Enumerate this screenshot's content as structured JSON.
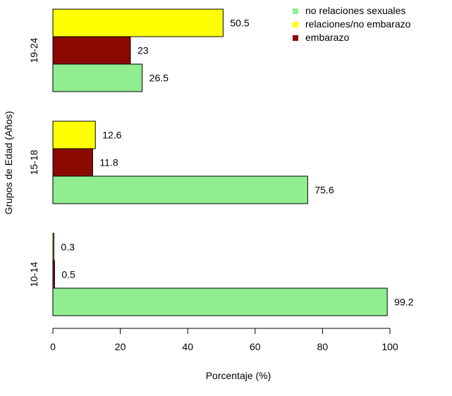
{
  "chart_data": {
    "type": "bar",
    "orientation": "horizontal",
    "xlabel": "Porcentaje (%)",
    "ylabel": "Grupos de Edad (Años)",
    "xlim": [
      0,
      100
    ],
    "xticks": [
      "0",
      "20",
      "40",
      "60",
      "80",
      "100"
    ],
    "categories": [
      "19-24",
      "15-18",
      "10-14"
    ],
    "series": [
      {
        "name": "relaciones/no embarazo",
        "color": "#ffff00",
        "values": [
          50.5,
          12.6,
          0.3
        ],
        "labels": [
          "50.5",
          "12.6",
          "0.3"
        ]
      },
      {
        "name": "embarazo",
        "color": "#8b0a00",
        "values": [
          23,
          11.8,
          0.5
        ],
        "labels": [
          "23",
          "11.8",
          "0.5"
        ]
      },
      {
        "name": "no relaciones sexuales",
        "color": "#90ee90",
        "values": [
          26.5,
          75.6,
          99.2
        ],
        "labels": [
          "26.5",
          "75.6",
          "99.2"
        ]
      }
    ],
    "legend": {
      "position": "top-right",
      "entries": [
        {
          "label": "no relaciones sexuales",
          "color": "#90ee90"
        },
        {
          "label": "relaciones/no embarazo",
          "color": "#ffff00"
        },
        {
          "label": "embarazo",
          "color": "#8b0a00"
        }
      ]
    },
    "grid": false
  }
}
